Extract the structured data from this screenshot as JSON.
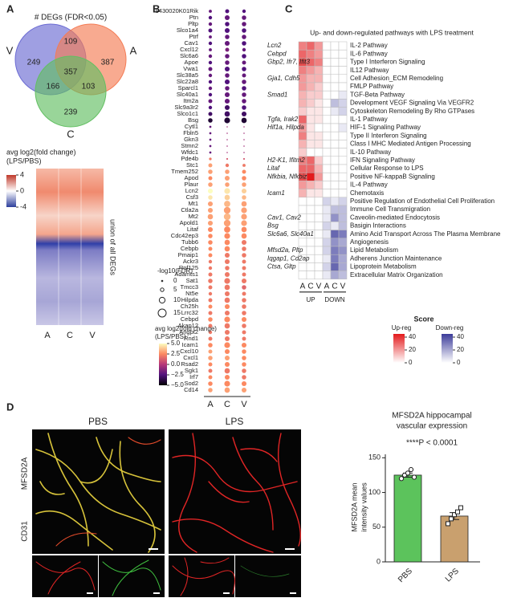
{
  "panel_a": {
    "label": "A",
    "title": "# DEGs (FDR<0.05)",
    "sets": [
      {
        "name": "V",
        "color": "#6b6bd3"
      },
      {
        "name": "A",
        "color": "#f47c55"
      },
      {
        "name": "C",
        "color": "#62bf62"
      }
    ],
    "regions": [
      249,
      109,
      387,
      357,
      166,
      103,
      239
    ],
    "heatmap": {
      "legend_title": [
        "avg log2(fold change)",
        "(LPS/PBS)"
      ],
      "ticks": [
        4,
        0,
        -4
      ],
      "side_label": "union of all DEGs",
      "columns": [
        "A",
        "C",
        "V"
      ]
    }
  },
  "panel_b": {
    "label": "B",
    "genes": [
      "9430020K01Rik",
      "Ptn",
      "Pltp",
      "Slco1a4",
      "Ptrf",
      "Cav1",
      "Cxcl12",
      "Slc6a6",
      "Apoe",
      "Vwa1",
      "Slc38a5",
      "Slc22a8",
      "Sparcl1",
      "Slc40a1",
      "Itm2a",
      "Slc9a3r2",
      "Slco1c1",
      "Bsg",
      "Cytl1",
      "Fbln5",
      "Gkn3",
      "Stmn2",
      "Wfdc1",
      "Pde4b",
      "Stc1",
      "Tmem252",
      "Apod",
      "Plaur",
      "Lcn2",
      "Csf3",
      "Mt1",
      "Ctla2a",
      "Mt2",
      "Apold1",
      "Litaf",
      "Cdc42ep3",
      "Tubb6",
      "Cebpb",
      "Pmaip1",
      "Ackr3",
      "Rnf125",
      "Adamts1",
      "Sat1",
      "Tmcc3",
      "Nt5e",
      "Hilpda",
      "Ch25h",
      "Lrrc32",
      "Cebpd",
      "Akap12",
      "Angpt2",
      "Rnd1",
      "Icam1",
      "Cxcl10",
      "Cxcl1",
      "Rsad2",
      "Sgk1",
      "Irf7",
      "Sod2",
      "Cd14"
    ],
    "columns": [
      "A",
      "C",
      "V"
    ],
    "column_colors": [
      "#e8423f",
      "#3aa63a",
      "#4a4ad0"
    ],
    "log2fc": [
      [
        -2,
        -2.5,
        -2.5
      ],
      [
        -2.5,
        -2,
        -2
      ],
      [
        -2,
        -2.5,
        -2
      ],
      [
        -2.5,
        -2.5,
        -2.5
      ],
      [
        -2,
        -2,
        -2
      ],
      [
        -2.5,
        -2,
        -2.5
      ],
      [
        -2,
        -1.5,
        -2
      ],
      [
        -2,
        -2,
        -2.5
      ],
      [
        -2.5,
        -2,
        -2
      ],
      [
        -2,
        -2.5,
        -2.5
      ],
      [
        -2,
        -2,
        -2
      ],
      [
        -2.5,
        -2.5,
        -2
      ],
      [
        -2,
        -2,
        -2.5
      ],
      [
        -2.5,
        -2,
        -2
      ],
      [
        -2,
        -2,
        -2
      ],
      [
        -2.5,
        -3,
        -2.5
      ],
      [
        -3,
        -3,
        -3
      ],
      [
        -4,
        -4,
        -4
      ],
      [
        -2,
        -0.5,
        -0.5
      ],
      [
        -2,
        -0.5,
        -0.5
      ],
      [
        -2,
        -0.5,
        -0.5
      ],
      [
        -2,
        -0.5,
        -0.5
      ],
      [
        -2,
        -0.5,
        -0.5
      ],
      [
        2,
        1,
        1
      ],
      [
        3,
        2,
        2
      ],
      [
        3,
        3,
        2.5
      ],
      [
        2.5,
        3,
        2.5
      ],
      [
        3,
        3,
        3
      ],
      [
        5,
        4.5,
        4
      ],
      [
        4.5,
        4,
        3.5
      ],
      [
        3,
        3.5,
        3
      ],
      [
        3,
        3,
        3
      ],
      [
        3,
        3.5,
        3
      ],
      [
        3,
        3,
        3
      ],
      [
        2.5,
        2.5,
        2.5
      ],
      [
        2.5,
        2.5,
        2.5
      ],
      [
        2.5,
        2.5,
        2
      ],
      [
        2.5,
        2.5,
        2
      ],
      [
        2.5,
        2,
        2
      ],
      [
        2,
        2,
        2
      ],
      [
        2,
        2,
        2
      ],
      [
        2,
        2,
        2
      ],
      [
        2,
        2,
        2
      ],
      [
        2,
        2,
        1.5
      ],
      [
        2,
        2,
        2
      ],
      [
        2,
        2,
        2
      ],
      [
        2.5,
        2.5,
        2
      ],
      [
        2,
        2,
        2
      ],
      [
        2.5,
        2.5,
        2.5
      ],
      [
        2,
        2,
        2
      ],
      [
        2,
        2,
        2
      ],
      [
        2,
        2,
        2
      ],
      [
        2.5,
        2.5,
        2.5
      ],
      [
        3,
        2.5,
        2.5
      ],
      [
        3,
        3,
        2.5
      ],
      [
        2.5,
        2.5,
        2.5
      ],
      [
        2,
        2,
        2
      ],
      [
        2.5,
        2.5,
        2
      ],
      [
        2.5,
        2.5,
        2.5
      ],
      [
        3,
        3,
        3
      ]
    ],
    "neg_log10_fdr": [
      [
        4,
        6,
        5
      ],
      [
        5,
        8,
        7
      ],
      [
        5,
        7,
        7
      ],
      [
        6,
        8,
        7
      ],
      [
        4,
        7,
        7
      ],
      [
        5,
        8,
        7
      ],
      [
        4,
        6,
        5
      ],
      [
        5,
        7,
        7
      ],
      [
        5,
        7,
        6
      ],
      [
        6,
        8,
        7
      ],
      [
        5,
        7,
        6
      ],
      [
        5,
        8,
        7
      ],
      [
        5,
        7,
        7
      ],
      [
        5,
        8,
        7
      ],
      [
        6,
        8,
        7
      ],
      [
        5,
        8,
        7
      ],
      [
        6,
        9,
        8
      ],
      [
        7,
        10,
        9
      ],
      [
        2,
        0,
        0
      ],
      [
        2,
        0,
        0
      ],
      [
        2,
        0,
        0
      ],
      [
        2,
        0,
        0
      ],
      [
        2,
        0,
        0
      ],
      [
        3,
        1,
        1
      ],
      [
        6,
        5,
        4
      ],
      [
        7,
        7,
        6
      ],
      [
        6,
        8,
        7
      ],
      [
        7,
        7,
        7
      ],
      [
        8,
        10,
        8
      ],
      [
        7,
        9,
        7
      ],
      [
        8,
        11,
        9
      ],
      [
        8,
        12,
        10
      ],
      [
        9,
        12,
        10
      ],
      [
        8,
        12,
        10
      ],
      [
        8,
        11,
        9
      ],
      [
        7,
        10,
        9
      ],
      [
        7,
        9,
        8
      ],
      [
        6,
        9,
        7
      ],
      [
        6,
        8,
        7
      ],
      [
        5,
        8,
        6
      ],
      [
        5,
        7,
        6
      ],
      [
        6,
        8,
        6
      ],
      [
        7,
        10,
        8
      ],
      [
        6,
        9,
        7
      ],
      [
        5,
        8,
        6
      ],
      [
        6,
        9,
        7
      ],
      [
        6,
        8,
        7
      ],
      [
        6,
        8,
        7
      ],
      [
        7,
        10,
        8
      ],
      [
        6,
        9,
        7
      ],
      [
        5,
        8,
        6
      ],
      [
        6,
        8,
        6
      ],
      [
        7,
        10,
        8
      ],
      [
        6,
        8,
        7
      ],
      [
        7,
        8,
        7
      ],
      [
        6,
        8,
        7
      ],
      [
        6,
        9,
        7
      ],
      [
        6,
        8,
        7
      ],
      [
        7,
        10,
        8
      ],
      [
        7,
        9,
        8
      ]
    ],
    "size_legend": {
      "title": "-log10(FDR)",
      "ticks": [
        0,
        5,
        10,
        15
      ]
    },
    "color_legend": {
      "title": [
        "avg log2(fold change)",
        "(LPS/PBS)"
      ],
      "lim": [
        -5,
        5
      ],
      "ticks": [
        {
          "value": 5,
          "label": "5.0"
        },
        {
          "value": 2.5,
          "label": "2.5"
        },
        {
          "value": 0,
          "label": "0.0"
        },
        {
          "value": -2.5,
          "label": "−2.5"
        },
        {
          "value": -5,
          "label": "−5.0"
        }
      ]
    }
  },
  "panel_c": {
    "label": "C",
    "title": "Up- and down-regulated pathways with LPS treatment",
    "pathways": [
      "IL-2 Pathway",
      "IL-6 Pathway",
      "Type I Interferon Signaling",
      "IL12 Pathway",
      "Cell Adhesion_ECM Remodeling",
      "FMLP Pathway",
      "TGF-Beta Pathway",
      "Development VEGF Signaling Via VEGFR2",
      "Cytoskeleton Remodeling By Rho GTPases",
      "IL-1 Pathway",
      "HIF-1 Signaling Pathway",
      "Type II Interferon Signaling",
      "Class I MHC Mediated Antigen Processing",
      "IL-10 Pathway",
      "IFN Signaling Pathway",
      "Cellular Response to LPS",
      "Positive NF-kappaB Signaling",
      "IL-4 Pathway",
      "Chemotaxis",
      "Positive Regulation of Endothelial Cell Proliferation",
      "Immune Cell Transmigration",
      "Caveolin-mediated Endocytosis",
      "Basigin Interactions",
      "Amino Acid Transport Across The Plasma Membrane",
      "Angiogenesis",
      "Lipid Metabolism",
      "Adherens Junction Maintenance",
      "Lipoprotein Metabolism",
      "Extracellular Matrix Organization"
    ],
    "gene_labels": [
      "Lcn2",
      "Cebpd",
      "Gbp2, Ifr7, Ifit3",
      null,
      "Gja1, Cdh5",
      null,
      "Smad1",
      null,
      null,
      "Tgfa, Irak2",
      "Hif1a, Hilpda",
      null,
      null,
      null,
      "H2-K1, Ifitm2",
      "Litaf",
      "Nfkbia, Nfkbiz",
      null,
      "Icam1",
      null,
      null,
      "Cav1, Cav2",
      "Bsg",
      "Slc6a6, Slc40a1",
      null,
      "Mfsd2a, Pltp",
      "Iqgap1, Cd2ap",
      "Ctsa, Gltp",
      null
    ],
    "columns": [
      "A",
      "C",
      "V",
      "A",
      "C",
      "V"
    ],
    "groups": [
      "UP",
      "DOWN"
    ],
    "scores": [
      [
        25,
        30,
        20,
        0,
        0,
        0
      ],
      [
        30,
        25,
        20,
        0,
        0,
        0
      ],
      [
        35,
        30,
        25,
        0,
        0,
        0
      ],
      [
        25,
        20,
        15,
        0,
        0,
        0
      ],
      [
        20,
        15,
        15,
        0,
        0,
        0
      ],
      [
        20,
        15,
        10,
        0,
        0,
        0
      ],
      [
        15,
        10,
        10,
        0,
        0,
        5
      ],
      [
        15,
        10,
        5,
        0,
        15,
        10
      ],
      [
        10,
        5,
        5,
        0,
        5,
        10
      ],
      [
        30,
        5,
        5,
        0,
        0,
        0
      ],
      [
        20,
        5,
        0,
        0,
        0,
        5
      ],
      [
        25,
        5,
        5,
        0,
        0,
        0
      ],
      [
        15,
        5,
        5,
        0,
        0,
        0
      ],
      [
        10,
        0,
        0,
        0,
        0,
        0
      ],
      [
        25,
        30,
        10,
        0,
        0,
        0
      ],
      [
        30,
        30,
        15,
        0,
        0,
        0
      ],
      [
        35,
        45,
        20,
        0,
        0,
        0
      ],
      [
        20,
        15,
        10,
        0,
        0,
        0
      ],
      [
        15,
        5,
        5,
        0,
        0,
        0
      ],
      [
        0,
        0,
        0,
        10,
        5,
        10
      ],
      [
        0,
        0,
        0,
        5,
        15,
        15
      ],
      [
        0,
        0,
        0,
        5,
        25,
        15
      ],
      [
        0,
        0,
        0,
        10,
        5,
        15
      ],
      [
        0,
        0,
        0,
        5,
        35,
        30
      ],
      [
        0,
        0,
        0,
        10,
        25,
        20
      ],
      [
        0,
        0,
        0,
        10,
        30,
        25
      ],
      [
        0,
        0,
        0,
        5,
        30,
        20
      ],
      [
        0,
        0,
        0,
        10,
        35,
        20
      ],
      [
        0,
        0,
        0,
        5,
        20,
        15
      ]
    ],
    "legend": {
      "title": "Score",
      "up": "Up-reg",
      "down": "Down-reg",
      "up_color": "#e31a1c",
      "down_color": "#3b3b9a",
      "lim": [
        0,
        45
      ],
      "ticks": [
        40,
        20,
        0
      ]
    }
  },
  "panel_d": {
    "label": "D",
    "image_labels": [
      "PBS",
      "LPS"
    ],
    "stain_labels": [
      {
        "text": "MFSD2A",
        "color": "#3fbf3f"
      },
      {
        "text": "CD31",
        "color": "#e02020"
      }
    ],
    "chart": {
      "type": "bar",
      "title": [
        "MFSD2A hippocampal",
        "vascular expression"
      ],
      "ylabel": [
        "MFSD2A mean",
        "intensity values"
      ],
      "annotation": "****P < 0.0001",
      "categories": [
        "PBS",
        "LPS"
      ],
      "values": [
        125,
        66
      ],
      "errors": [
        3,
        5
      ],
      "points": [
        [
          120,
          125,
          128,
          133,
          122
        ],
        [
          55,
          62,
          68,
          72,
          78
        ]
      ],
      "colors": [
        "#5cc35c",
        "#c9a06e"
      ],
      "ylim": [
        0,
        155
      ],
      "yticks": [
        0,
        50,
        100,
        150
      ]
    }
  }
}
